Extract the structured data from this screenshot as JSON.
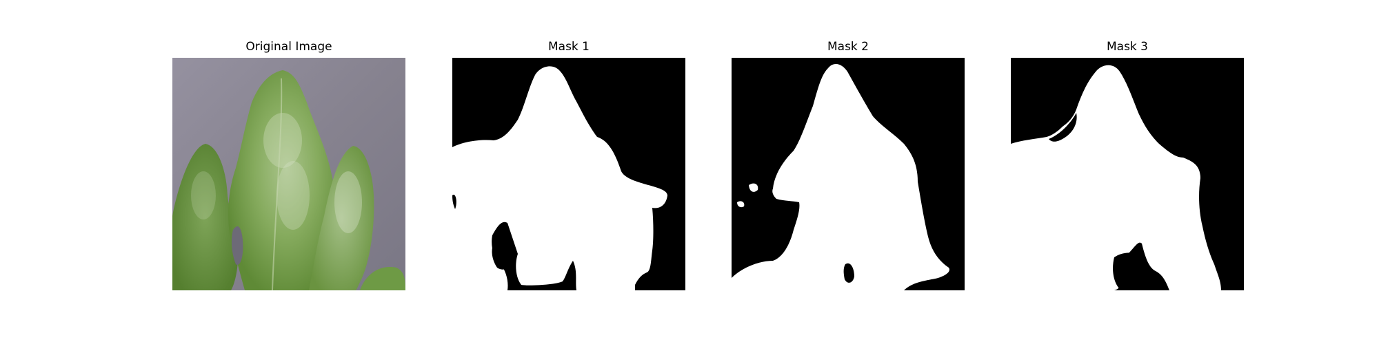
{
  "figure": {
    "panels": [
      {
        "title": "Original Image"
      },
      {
        "title": "Mask 1"
      },
      {
        "title": "Mask 2"
      },
      {
        "title": "Mask 3"
      }
    ]
  },
  "colors": {
    "background": "#ffffff",
    "mask_foreground": "#ffffff",
    "mask_background": "#000000",
    "leaf_green": "#6e9a45",
    "surface_gray": "#8a8692"
  }
}
